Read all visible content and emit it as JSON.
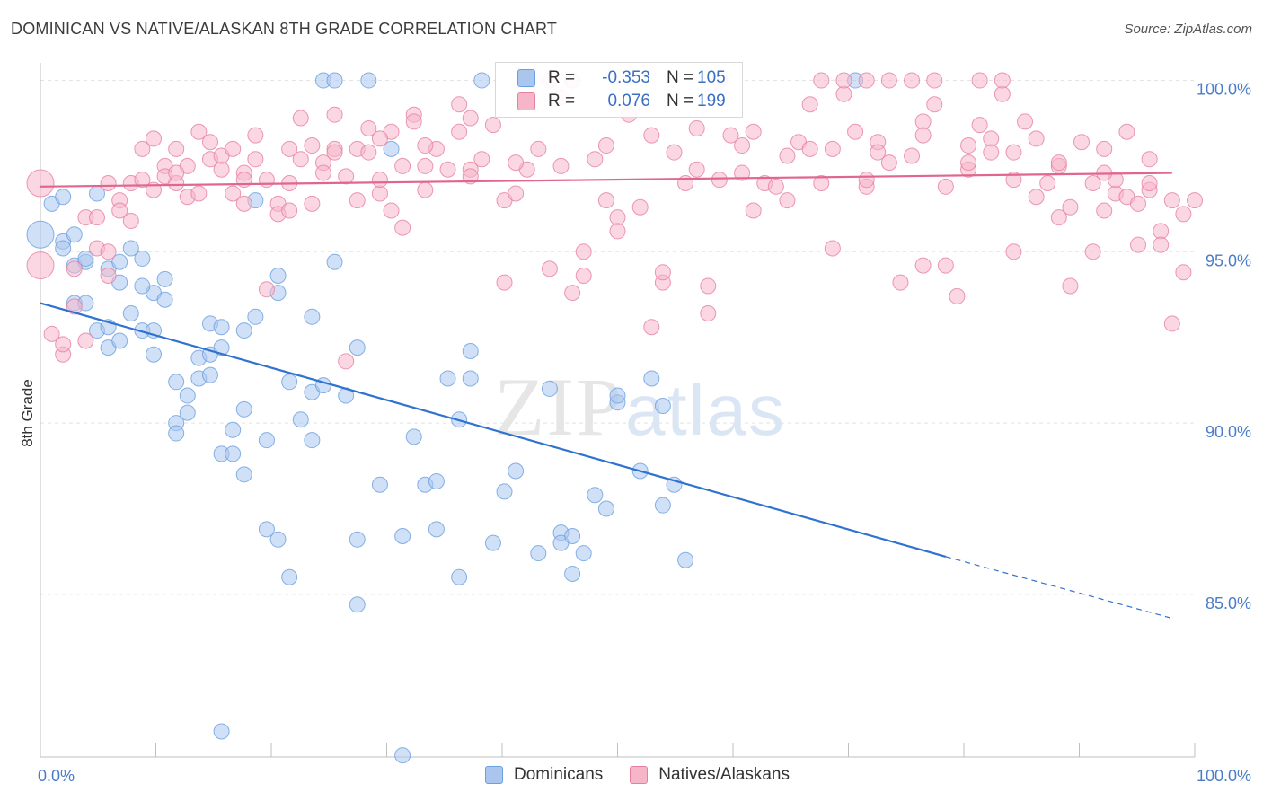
{
  "title": "DOMINICAN VS NATIVE/ALASKAN 8TH GRADE CORRELATION CHART",
  "source": "Source: ZipAtlas.com",
  "watermark": {
    "zip": "ZIP",
    "atlas": "atlas"
  },
  "legend": {
    "r_label": "R =",
    "n_label": "N =",
    "rows": [
      {
        "r": "-0.353",
        "n": "105",
        "color": "#aac6ee"
      },
      {
        "r": "0.076",
        "n": "199",
        "color": "#f6b6ca"
      }
    ]
  },
  "bottom_legend": [
    "Dominicans",
    "Natives/Alaskans"
  ],
  "chart_data": {
    "type": "scatter",
    "title": "DOMINICAN VS NATIVE/ALASKAN 8TH GRADE CORRELATION CHART",
    "xlabel": "",
    "ylabel": "8th Grade",
    "xlim": [
      0,
      100
    ],
    "ylim": [
      80.0,
      100.5
    ],
    "x_tick_labels": [
      "0.0%",
      "100.0%"
    ],
    "y_ticks": [
      85,
      90,
      95,
      100
    ],
    "y_tick_labels": [
      "85.0%",
      "90.0%",
      "95.0%",
      "100.0%"
    ],
    "grid": true,
    "legend_position": "top-center",
    "series": [
      {
        "name": "Dominicans",
        "color": "#6a9fe0",
        "fill": "#aac6ee",
        "trend": {
          "x0": 0,
          "y0": 93.5,
          "x1": 80,
          "y1": 86.1,
          "dash_to_x": 100,
          "dash_to_y": 84.3,
          "color": "#2f72d0"
        },
        "points": [
          [
            0,
            95.5
          ],
          [
            1,
            96.4
          ],
          [
            2,
            95.3
          ],
          [
            2,
            95.1
          ],
          [
            3,
            95.5
          ],
          [
            3,
            94.6
          ],
          [
            4,
            94.7
          ],
          [
            4,
            94.8
          ],
          [
            3,
            93.5
          ],
          [
            4,
            93.5
          ],
          [
            5,
            92.7
          ],
          [
            6,
            92.8
          ],
          [
            6,
            92.2
          ],
          [
            7,
            92.4
          ],
          [
            6,
            94.5
          ],
          [
            7,
            94.1
          ],
          [
            7,
            94.7
          ],
          [
            8,
            93.2
          ],
          [
            8,
            95.1
          ],
          [
            9,
            94.8
          ],
          [
            9,
            92.7
          ],
          [
            10,
            93.8
          ],
          [
            10,
            92.7
          ],
          [
            11,
            94.2
          ],
          [
            11,
            93.6
          ],
          [
            12,
            90.0
          ],
          [
            13,
            90.3
          ],
          [
            13,
            90.8
          ],
          [
            12,
            89.7
          ],
          [
            14,
            91.9
          ],
          [
            14,
            91.3
          ],
          [
            15,
            91.4
          ],
          [
            15,
            92.0
          ],
          [
            15,
            92.9
          ],
          [
            16,
            92.8
          ],
          [
            16,
            92.2
          ],
          [
            16,
            89.1
          ],
          [
            17,
            89.8
          ],
          [
            17,
            89.1
          ],
          [
            18,
            90.4
          ],
          [
            18,
            88.5
          ],
          [
            18,
            92.7
          ],
          [
            19,
            93.1
          ],
          [
            20,
            89.5
          ],
          [
            20,
            86.9
          ],
          [
            21,
            86.6
          ],
          [
            21,
            94.3
          ],
          [
            21,
            93.8
          ],
          [
            22,
            91.2
          ],
          [
            22,
            85.5
          ],
          [
            23,
            90.1
          ],
          [
            24,
            90.9
          ],
          [
            24,
            93.1
          ],
          [
            24,
            89.5
          ],
          [
            25,
            91.1
          ],
          [
            25,
            100.0
          ],
          [
            26,
            94.7
          ],
          [
            26,
            100.0
          ],
          [
            27,
            90.8
          ],
          [
            28,
            92.2
          ],
          [
            28,
            84.7
          ],
          [
            28,
            86.6
          ],
          [
            29,
            100.0
          ],
          [
            30,
            88.2
          ],
          [
            31,
            98.0
          ],
          [
            32,
            86.7
          ],
          [
            33,
            89.6
          ],
          [
            34,
            88.2
          ],
          [
            35,
            86.9
          ],
          [
            35,
            88.3
          ],
          [
            36,
            91.3
          ],
          [
            37,
            90.1
          ],
          [
            37,
            85.5
          ],
          [
            38,
            91.3
          ],
          [
            38,
            92.1
          ],
          [
            39,
            100.0
          ],
          [
            40,
            86.5
          ],
          [
            41,
            88.0
          ],
          [
            42,
            88.6
          ],
          [
            44,
            86.2
          ],
          [
            45,
            91.0
          ],
          [
            46,
            86.8
          ],
          [
            46,
            86.5
          ],
          [
            47,
            85.6
          ],
          [
            47,
            86.7
          ],
          [
            48,
            86.2
          ],
          [
            49,
            87.9
          ],
          [
            50,
            87.5
          ],
          [
            51,
            90.6
          ],
          [
            51,
            90.8
          ],
          [
            53,
            88.6
          ],
          [
            54,
            91.3
          ],
          [
            55,
            90.5
          ],
          [
            55,
            87.6
          ],
          [
            56,
            88.2
          ],
          [
            57,
            86.0
          ],
          [
            72,
            100.0
          ],
          [
            16,
            81.0
          ],
          [
            32,
            80.3
          ],
          [
            5,
            96.7
          ],
          [
            9,
            94.0
          ],
          [
            10,
            92.0
          ],
          [
            12,
            91.2
          ],
          [
            2,
            96.6
          ],
          [
            19,
            96.5
          ]
        ]
      },
      {
        "name": "Natives/Alaskans",
        "color": "#e77fa0",
        "fill": "#f6b6ca",
        "trend": {
          "x0": 0,
          "y0": 96.9,
          "x1": 100,
          "y1": 97.3,
          "color": "#e0668f"
        },
        "points": [
          [
            0,
            97.0
          ],
          [
            0,
            94.6
          ],
          [
            1,
            92.6
          ],
          [
            2,
            92.0
          ],
          [
            2,
            92.3
          ],
          [
            3,
            93.4
          ],
          [
            3,
            94.5
          ],
          [
            4,
            96.0
          ],
          [
            5,
            95.1
          ],
          [
            5,
            96.0
          ],
          [
            6,
            97.0
          ],
          [
            6,
            95.0
          ],
          [
            7,
            96.5
          ],
          [
            7,
            96.2
          ],
          [
            8,
            97.0
          ],
          [
            9,
            98.0
          ],
          [
            9,
            97.1
          ],
          [
            10,
            98.3
          ],
          [
            11,
            97.5
          ],
          [
            11,
            97.2
          ],
          [
            12,
            98.0
          ],
          [
            12,
            97.0
          ],
          [
            13,
            96.6
          ],
          [
            13,
            97.5
          ],
          [
            14,
            98.5
          ],
          [
            15,
            97.7
          ],
          [
            15,
            98.2
          ],
          [
            16,
            97.4
          ],
          [
            16,
            97.8
          ],
          [
            17,
            96.7
          ],
          [
            17,
            98.0
          ],
          [
            18,
            97.3
          ],
          [
            18,
            97.1
          ],
          [
            19,
            98.4
          ],
          [
            19,
            97.7
          ],
          [
            20,
            93.9
          ],
          [
            20,
            97.1
          ],
          [
            21,
            96.4
          ],
          [
            21,
            96.1
          ],
          [
            22,
            96.2
          ],
          [
            22,
            98.0
          ],
          [
            23,
            98.9
          ],
          [
            23,
            97.7
          ],
          [
            24,
            96.4
          ],
          [
            24,
            98.1
          ],
          [
            25,
            97.6
          ],
          [
            25,
            97.3
          ],
          [
            26,
            99.0
          ],
          [
            26,
            98.0
          ],
          [
            27,
            97.2
          ],
          [
            27,
            91.8
          ],
          [
            28,
            98.0
          ],
          [
            28,
            96.5
          ],
          [
            29,
            97.9
          ],
          [
            29,
            98.6
          ],
          [
            30,
            96.7
          ],
          [
            30,
            97.1
          ],
          [
            31,
            96.2
          ],
          [
            31,
            98.5
          ],
          [
            32,
            97.5
          ],
          [
            32,
            95.7
          ],
          [
            33,
            99.0
          ],
          [
            33,
            98.8
          ],
          [
            34,
            97.5
          ],
          [
            34,
            96.8
          ],
          [
            35,
            98.0
          ],
          [
            36,
            97.4
          ],
          [
            37,
            99.3
          ],
          [
            37,
            98.5
          ],
          [
            38,
            97.4
          ],
          [
            38,
            98.9
          ],
          [
            39,
            97.7
          ],
          [
            40,
            98.7
          ],
          [
            41,
            94.1
          ],
          [
            41,
            96.5
          ],
          [
            42,
            96.7
          ],
          [
            43,
            97.4
          ],
          [
            44,
            98.0
          ],
          [
            45,
            94.5
          ],
          [
            46,
            99.5
          ],
          [
            47,
            93.8
          ],
          [
            48,
            94.3
          ],
          [
            48,
            95.0
          ],
          [
            49,
            97.7
          ],
          [
            50,
            96.5
          ],
          [
            51,
            96.0
          ],
          [
            51,
            95.6
          ],
          [
            52,
            99.0
          ],
          [
            53,
            96.3
          ],
          [
            54,
            92.8
          ],
          [
            55,
            94.1
          ],
          [
            55,
            94.4
          ],
          [
            56,
            97.9
          ],
          [
            57,
            97.0
          ],
          [
            58,
            97.4
          ],
          [
            59,
            94.0
          ],
          [
            59,
            93.2
          ],
          [
            60,
            97.1
          ],
          [
            61,
            98.4
          ],
          [
            62,
            97.3
          ],
          [
            63,
            98.5
          ],
          [
            63,
            96.2
          ],
          [
            64,
            97.0
          ],
          [
            65,
            96.9
          ],
          [
            66,
            96.5
          ],
          [
            67,
            98.2
          ],
          [
            68,
            98.0
          ],
          [
            68,
            99.3
          ],
          [
            69,
            97.0
          ],
          [
            70,
            95.1
          ],
          [
            71,
            99.6
          ],
          [
            72,
            98.5
          ],
          [
            73,
            96.9
          ],
          [
            73,
            97.1
          ],
          [
            74,
            98.2
          ],
          [
            75,
            97.6
          ],
          [
            76,
            94.1
          ],
          [
            77,
            97.8
          ],
          [
            78,
            98.8
          ],
          [
            78,
            94.6
          ],
          [
            79,
            99.3
          ],
          [
            80,
            96.9
          ],
          [
            80,
            94.6
          ],
          [
            81,
            93.7
          ],
          [
            82,
            97.4
          ],
          [
            82,
            97.6
          ],
          [
            83,
            98.7
          ],
          [
            84,
            98.3
          ],
          [
            84,
            97.9
          ],
          [
            85,
            99.6
          ],
          [
            86,
            97.1
          ],
          [
            86,
            95.0
          ],
          [
            87,
            98.8
          ],
          [
            88,
            98.3
          ],
          [
            88,
            96.6
          ],
          [
            89,
            97.0
          ],
          [
            90,
            96.0
          ],
          [
            90,
            97.5
          ],
          [
            91,
            96.3
          ],
          [
            91,
            94.0
          ],
          [
            92,
            98.2
          ],
          [
            93,
            97.0
          ],
          [
            93,
            95.0
          ],
          [
            94,
            96.2
          ],
          [
            94,
            98.0
          ],
          [
            95,
            96.7
          ],
          [
            95,
            97.1
          ],
          [
            96,
            98.5
          ],
          [
            96,
            96.6
          ],
          [
            97,
            96.4
          ],
          [
            97,
            95.2
          ],
          [
            98,
            96.8
          ],
          [
            98,
            97.7
          ],
          [
            99,
            95.6
          ],
          [
            99,
            95.2
          ],
          [
            100,
            96.5
          ],
          [
            100,
            92.9
          ],
          [
            101,
            96.1
          ],
          [
            101,
            94.4
          ],
          [
            102,
            96.5
          ],
          [
            43,
            100.0
          ],
          [
            45,
            100.0
          ],
          [
            47,
            100.0
          ],
          [
            60,
            100.0
          ],
          [
            69,
            100.0
          ],
          [
            71,
            100.0
          ],
          [
            73,
            100.0
          ],
          [
            75,
            100.0
          ],
          [
            77,
            100.0
          ],
          [
            79,
            100.0
          ],
          [
            83,
            100.0
          ],
          [
            85,
            100.0
          ],
          [
            4,
            92.4
          ],
          [
            6,
            94.3
          ],
          [
            8,
            95.9
          ],
          [
            10,
            96.8
          ],
          [
            12,
            97.3
          ],
          [
            14,
            96.7
          ],
          [
            18,
            96.4
          ],
          [
            22,
            97.0
          ],
          [
            26,
            97.9
          ],
          [
            30,
            98.3
          ],
          [
            34,
            98.1
          ],
          [
            38,
            97.2
          ],
          [
            42,
            97.6
          ],
          [
            46,
            97.5
          ],
          [
            50,
            98.1
          ],
          [
            54,
            98.4
          ],
          [
            58,
            98.6
          ],
          [
            62,
            98.1
          ],
          [
            66,
            97.8
          ],
          [
            70,
            98.0
          ],
          [
            74,
            97.9
          ],
          [
            78,
            98.4
          ],
          [
            82,
            98.1
          ],
          [
            86,
            97.9
          ],
          [
            90,
            97.6
          ],
          [
            94,
            97.3
          ],
          [
            98,
            97.0
          ]
        ]
      }
    ]
  }
}
